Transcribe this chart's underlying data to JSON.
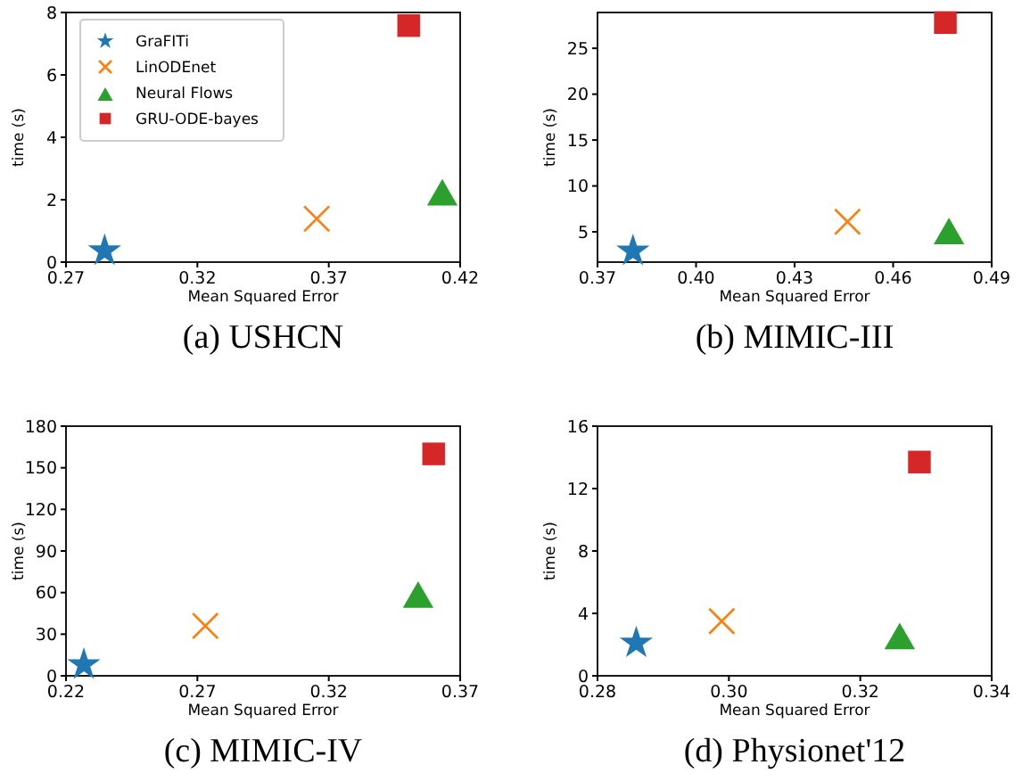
{
  "chart_data": [
    {
      "type": "scatter",
      "title": "(a) USHCN",
      "xlabel": "Mean Squared Error",
      "ylabel": "time (s)",
      "xlim": [
        0.27,
        0.42
      ],
      "xticks": [
        0.27,
        0.32,
        0.37,
        0.42
      ],
      "ylim": [
        0,
        8
      ],
      "yticks": [
        0,
        2,
        4,
        6,
        8
      ],
      "legend": "top left",
      "series": [
        {
          "name": "GraFITi",
          "color": "#1f77b4",
          "marker": "star",
          "x": [
            0.2847
          ],
          "values": [
            0.36
          ]
        },
        {
          "name": "LinODEnet",
          "color": "#ff7f0e",
          "marker": "cross",
          "x": [
            0.3654
          ],
          "values": [
            1.39
          ]
        },
        {
          "name": "Neural Flows",
          "color": "#2ca02c",
          "marker": "triangle",
          "x": [
            0.4132
          ],
          "values": [
            2.21
          ]
        },
        {
          "name": "GRU-ODE-bayes",
          "color": "#d62728",
          "marker": "square",
          "x": [
            0.4004
          ],
          "values": [
            7.58
          ]
        }
      ]
    },
    {
      "type": "scatter",
      "title": "(b) MIMIC-III",
      "xlabel": "Mean Squared Error",
      "ylabel": "time (s)",
      "xlim": [
        0.37,
        0.49
      ],
      "xticks": [
        0.37,
        {
          "value": 0.4,
          "label": "0.40"
        },
        0.43,
        0.46,
        0.49
      ],
      "ylim": [
        1.7,
        28.9
      ],
      "yticks": [
        5,
        10,
        15,
        20,
        25
      ],
      "series": [
        {
          "color": "#1f77b4",
          "marker": "star",
          "x": [
            0.3808
          ],
          "values": [
            2.9
          ]
        },
        {
          "color": "#ff7f0e",
          "marker": "cross",
          "x": [
            0.4461
          ],
          "values": [
            6.1
          ]
        },
        {
          "color": "#2ca02c",
          "marker": "triangle",
          "x": [
            0.477
          ],
          "values": [
            5.0
          ]
        },
        {
          "color": "#d62728",
          "marker": "square",
          "x": [
            0.4759
          ],
          "values": [
            27.8
          ]
        }
      ]
    },
    {
      "type": "scatter",
      "title": "(c) MIMIC-IV",
      "xlabel": "Mean Squared Error",
      "ylabel": "time (s)",
      "xlim": [
        0.22,
        0.37
      ],
      "xticks": [
        0.22,
        0.27,
        0.32,
        0.37
      ],
      "ylim": [
        0,
        180
      ],
      "yticks": [
        0,
        30,
        60,
        90,
        120,
        150,
        180
      ],
      "series": [
        {
          "color": "#1f77b4",
          "marker": "star",
          "x": [
            0.2268
          ],
          "values": [
            8
          ]
        },
        {
          "color": "#ff7f0e",
          "marker": "cross",
          "x": [
            0.273
          ],
          "values": [
            36
          ]
        },
        {
          "color": "#2ca02c",
          "marker": "triangle",
          "x": [
            0.354
          ],
          "values": [
            58
          ]
        },
        {
          "color": "#d62728",
          "marker": "square",
          "x": [
            0.3599
          ],
          "values": [
            160
          ]
        }
      ]
    },
    {
      "type": "scatter",
      "title": "(d) Physionet'12",
      "xlabel": "Mean Squared Error",
      "ylabel": "time (s)",
      "xlim": [
        0.28,
        0.34
      ],
      "xticks": [
        {
          "value": 0.28,
          "label": "0.28"
        },
        {
          "value": 0.3,
          "label": "0.30"
        },
        {
          "value": 0.32,
          "label": "0.32"
        },
        {
          "value": 0.34,
          "label": "0.34"
        }
      ],
      "ylim": [
        0,
        16
      ],
      "yticks": [
        0,
        4,
        8,
        12,
        16
      ],
      "series": [
        {
          "color": "#1f77b4",
          "marker": "star",
          "x": [
            0.2859
          ],
          "values": [
            2.1
          ]
        },
        {
          "color": "#ff7f0e",
          "marker": "cross",
          "x": [
            0.2989
          ],
          "values": [
            3.5
          ]
        },
        {
          "color": "#2ca02c",
          "marker": "triangle",
          "x": [
            0.326
          ],
          "values": [
            2.5
          ]
        },
        {
          "color": "#d62728",
          "marker": "square",
          "x": [
            0.329
          ],
          "values": [
            13.7
          ]
        }
      ]
    }
  ]
}
